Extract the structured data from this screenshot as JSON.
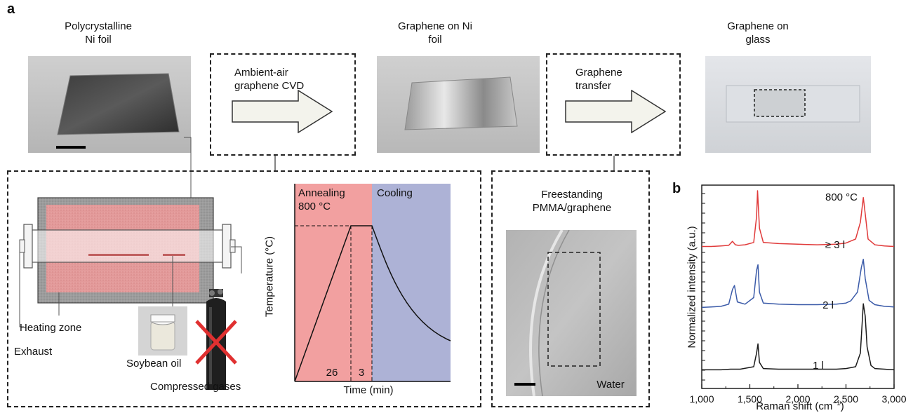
{
  "panel_a": {
    "letter": "a",
    "step1_title_line1": "Polycrystalline",
    "step1_title_line2": "Ni foil",
    "step2_title_line1": "Graphene on Ni",
    "step2_title_line2": "foil",
    "step3_title_line1": "Graphene on",
    "step3_title_line2": "glass",
    "arrow1_line1": "Ambient-air",
    "arrow1_line2": "graphene CVD",
    "arrow2_line1": "Graphene",
    "arrow2_line2": "transfer",
    "cvd": {
      "heating_zone": "Heating zone",
      "exhaust": "Exhaust",
      "soybean_oil": "Soybean oil",
      "compressed_gases": "Compressed gases"
    },
    "temp_plot": {
      "annealing_line1": "Annealing",
      "annealing_line2": "800 °C",
      "cooling": "Cooling",
      "ylabel": "Temperature (°C)",
      "xlabel": "Time (min)",
      "seg1": "26",
      "seg2": "3"
    },
    "transfer": {
      "title_line1": "Freestanding",
      "title_line2": "PMMA/graphene",
      "water": "Water"
    }
  },
  "panel_b": {
    "letter": "b"
  },
  "chart_data": {
    "type": "line",
    "title": "",
    "annotation": "800 °C",
    "xlabel": "Raman shift (cm⁻¹)",
    "ylabel": "Normalized intensity (a.u.)",
    "xlim": [
      1000,
      3000
    ],
    "xticks": [
      "1,000",
      "1,500",
      "2,000",
      "2,500",
      "3,000"
    ],
    "grid": false,
    "series": [
      {
        "name": "≥ 3 l",
        "color": "#e03a3a",
        "x": [
          1000,
          1100,
          1200,
          1280,
          1320,
          1350,
          1380,
          1450,
          1540,
          1570,
          1580,
          1600,
          1640,
          1800,
          2000,
          2200,
          2400,
          2500,
          2600,
          2650,
          2680,
          2700,
          2730,
          2800,
          2900,
          3000
        ],
        "y": [
          0.03,
          0.03,
          0.04,
          0.05,
          0.12,
          0.06,
          0.05,
          0.06,
          0.1,
          0.55,
          1.0,
          0.35,
          0.1,
          0.08,
          0.07,
          0.06,
          0.07,
          0.09,
          0.16,
          0.45,
          0.88,
          0.6,
          0.16,
          0.06,
          0.04,
          0.03
        ]
      },
      {
        "name": "2 l",
        "color": "#3a5aa8",
        "x": [
          1000,
          1100,
          1200,
          1280,
          1320,
          1340,
          1370,
          1450,
          1540,
          1570,
          1585,
          1600,
          1640,
          1800,
          2000,
          2200,
          2400,
          2500,
          2550,
          2620,
          2660,
          2680,
          2700,
          2740,
          2800,
          2900,
          3000
        ],
        "y": [
          0.02,
          0.03,
          0.04,
          0.08,
          0.35,
          0.42,
          0.12,
          0.08,
          0.2,
          0.7,
          0.8,
          0.3,
          0.1,
          0.08,
          0.07,
          0.07,
          0.08,
          0.1,
          0.14,
          0.3,
          0.75,
          0.9,
          0.55,
          0.15,
          0.07,
          0.04,
          0.03
        ]
      },
      {
        "name": "1 l",
        "color": "#1a1a1a",
        "x": [
          1000,
          1100,
          1200,
          1300,
          1400,
          1540,
          1570,
          1585,
          1600,
          1640,
          1800,
          2000,
          2200,
          2400,
          2500,
          2600,
          2650,
          2680,
          2700,
          2720,
          2760,
          2800,
          2900,
          3000
        ],
        "y": [
          0.03,
          0.03,
          0.03,
          0.04,
          0.04,
          0.08,
          0.3,
          0.45,
          0.15,
          0.05,
          0.04,
          0.04,
          0.04,
          0.04,
          0.05,
          0.08,
          0.3,
          1.1,
          0.9,
          0.4,
          0.1,
          0.05,
          0.04,
          0.03
        ]
      }
    ]
  }
}
